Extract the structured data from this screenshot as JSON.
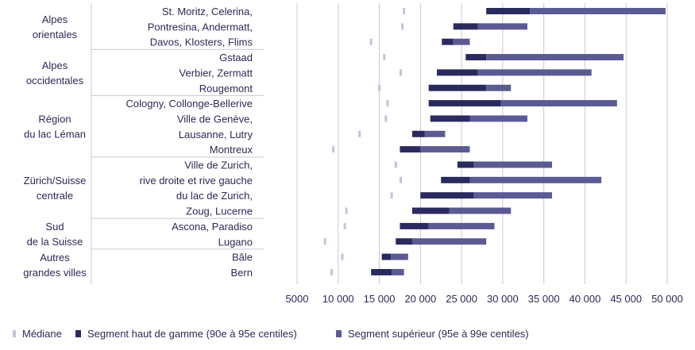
{
  "chart_data": {
    "type": "bar",
    "orientation": "horizontal-range",
    "xlim": [
      5000,
      50000
    ],
    "x_ticks": [
      {
        "value": 5000,
        "label": "5000"
      },
      {
        "value": 10000,
        "label": "10 000"
      },
      {
        "value": 15000,
        "label": "15 000"
      },
      {
        "value": 20000,
        "label": "20 000"
      },
      {
        "value": 25000,
        "label": "25 000"
      },
      {
        "value": 30000,
        "label": "30 000"
      },
      {
        "value": 35000,
        "label": "35 000"
      },
      {
        "value": 40000,
        "label": "40 000"
      },
      {
        "value": 45000,
        "label": "45 000"
      },
      {
        "value": 50000,
        "label": "50 000"
      }
    ],
    "groups": [
      {
        "lines": [
          "Alpes",
          "orientales"
        ],
        "rows": [
          0,
          2
        ]
      },
      {
        "lines": [
          "Alpes",
          "occidentales"
        ],
        "rows": [
          3,
          5
        ]
      },
      {
        "lines": [
          "Région",
          "du lac Léman"
        ],
        "rows": [
          6,
          9
        ]
      },
      {
        "lines": [
          "Zürich/Suisse",
          "centrale"
        ],
        "rows": [
          10,
          13
        ]
      },
      {
        "lines": [
          "Sud",
          "de la Suisse"
        ],
        "rows": [
          14,
          15
        ]
      },
      {
        "lines": [
          "Autres",
          "grandes villes"
        ],
        "rows": [
          16,
          17
        ]
      }
    ],
    "rows": [
      {
        "label": "St. Moritz, Celerina,",
        "median": 18000,
        "p90": 28000,
        "p95": 33300,
        "p99": 49800
      },
      {
        "label": "Pontresina, Andermatt,",
        "median": 17800,
        "p90": 24000,
        "p95": 27000,
        "p99": 33000
      },
      {
        "label": "Davos, Klosters, Flims",
        "median": 14000,
        "p90": 22600,
        "p95": 24000,
        "p99": 26000
      },
      {
        "label": "Gstaad",
        "median": 15600,
        "p90": 25500,
        "p95": 28000,
        "p99": 44700
      },
      {
        "label": "Verbier, Zermatt",
        "median": 17600,
        "p90": 22000,
        "p95": 27000,
        "p99": 40800
      },
      {
        "label": "Rougemont",
        "median": 15000,
        "p90": 21000,
        "p95": 28000,
        "p99": 31000
      },
      {
        "label": "Cologny, Collonge-Bellerive",
        "median": 16000,
        "p90": 21000,
        "p95": 29800,
        "p99": 43900
      },
      {
        "label": "Ville de Genève,",
        "median": 15800,
        "p90": 21200,
        "p95": 26000,
        "p99": 33000
      },
      {
        "label": "Lausanne, Lutry",
        "median": 12600,
        "p90": 19000,
        "p95": 20500,
        "p99": 23000
      },
      {
        "label": "Montreux",
        "median": 9400,
        "p90": 17500,
        "p95": 20000,
        "p99": 26000
      },
      {
        "label": "Ville de Zurich,",
        "median": 17000,
        "p90": 24500,
        "p95": 26500,
        "p99": 36000
      },
      {
        "label": "rive droite et rive gauche",
        "median": 17600,
        "p90": 22500,
        "p95": 26000,
        "p99": 42000
      },
      {
        "label": "du lac de Zurich,",
        "median": 16500,
        "p90": 20000,
        "p95": 26500,
        "p99": 36000
      },
      {
        "label": "Zoug, Lucerne",
        "median": 11000,
        "p90": 19000,
        "p95": 23500,
        "p99": 31000
      },
      {
        "label": "Ascona, Paradiso",
        "median": 10800,
        "p90": 17500,
        "p95": 21000,
        "p99": 29000
      },
      {
        "label": "Lugano",
        "median": 8400,
        "p90": 17000,
        "p95": 19000,
        "p99": 28000
      },
      {
        "label": "Bâle",
        "median": 10500,
        "p90": 15300,
        "p95": 16400,
        "p99": 18500
      },
      {
        "label": "Bern",
        "median": 9200,
        "p90": 14000,
        "p95": 16500,
        "p99": 18000
      }
    ],
    "legend": [
      {
        "key": "median",
        "label": "Médiane",
        "color": "#c3c2dc"
      },
      {
        "key": "high",
        "label": "Segment haut de gamme (90e à 95e centiles)",
        "color": "#2b2a5e"
      },
      {
        "key": "upper",
        "label": "Segment supérieur (95e à 99e centiles)",
        "color": "#5b5a93"
      }
    ],
    "colors": {
      "median": "#c3c2dc",
      "high": "#2b2a5e",
      "upper": "#5b5a93",
      "grid": "#c8c8d6",
      "text": "#2b2a55"
    }
  }
}
